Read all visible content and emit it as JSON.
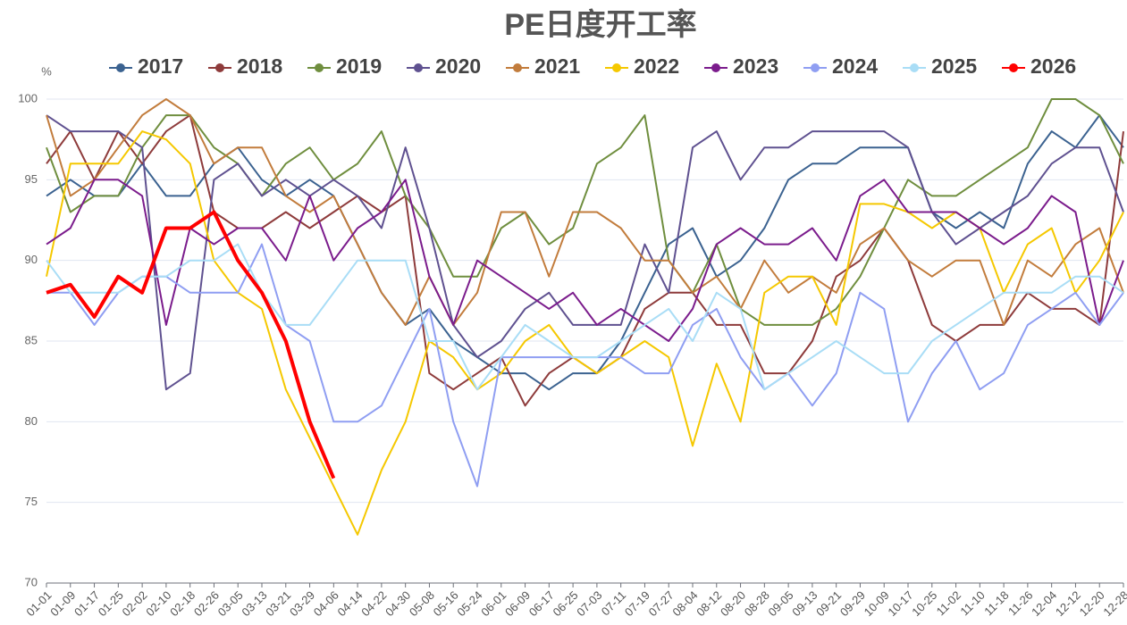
{
  "chart_data": {
    "type": "line",
    "title": "PE日度开工率",
    "y_label": "%",
    "categories": [
      "01-01",
      "01-09",
      "01-17",
      "01-25",
      "02-02",
      "02-10",
      "02-18",
      "02-26",
      "03-05",
      "03-13",
      "03-21",
      "03-29",
      "04-06",
      "04-14",
      "04-22",
      "04-30",
      "05-08",
      "05-16",
      "05-24",
      "06-01",
      "06-09",
      "06-17",
      "06-25",
      "07-03",
      "07-11",
      "07-19",
      "07-27",
      "08-04",
      "08-12",
      "08-20",
      "08-28",
      "09-05",
      "09-13",
      "09-21",
      "09-29",
      "10-09",
      "10-17",
      "10-25",
      "11-02",
      "11-10",
      "11-18",
      "11-26",
      "12-04",
      "12-12",
      "12-20",
      "12-28"
    ],
    "ylim": [
      70,
      100
    ],
    "yticks": [
      70,
      75,
      80,
      85,
      90,
      95,
      100
    ],
    "grid": true,
    "series": [
      {
        "name": "2017",
        "color": "#3b6290",
        "values": [
          94,
          95,
          94,
          94,
          96,
          94,
          94,
          96,
          97,
          95,
          94,
          95,
          94,
          91,
          88,
          86,
          87,
          85,
          84,
          83,
          83,
          82,
          83,
          83,
          85,
          88,
          91,
          92,
          89,
          90,
          92,
          95,
          96,
          96,
          97,
          97,
          97,
          93,
          92,
          93,
          92,
          96,
          98,
          97,
          99,
          97
        ]
      },
      {
        "name": "2018",
        "color": "#8e3b3b",
        "values": [
          96,
          98,
          95,
          98,
          96,
          98,
          99,
          93,
          92,
          92,
          93,
          92,
          93,
          94,
          93,
          94,
          83,
          82,
          83,
          84,
          81,
          83,
          84,
          83,
          84,
          87,
          88,
          88,
          86,
          86,
          83,
          83,
          85,
          89,
          90,
          92,
          90,
          86,
          85,
          86,
          86,
          88,
          87,
          87,
          86,
          98
        ]
      },
      {
        "name": "2019",
        "color": "#6f8e3e",
        "values": [
          97,
          93,
          94,
          94,
          97,
          99,
          99,
          97,
          96,
          94,
          96,
          97,
          95,
          96,
          98,
          94,
          92,
          89,
          89,
          92,
          93,
          91,
          92,
          96,
          97,
          99,
          90,
          88,
          91,
          87,
          86,
          86,
          86,
          87,
          89,
          92,
          95,
          94,
          94,
          95,
          96,
          97,
          100,
          100,
          99,
          96
        ]
      },
      {
        "name": "2020",
        "color": "#5f5190",
        "values": [
          99,
          98,
          98,
          98,
          97,
          82,
          83,
          95,
          96,
          94,
          95,
          94,
          95,
          94,
          92,
          97,
          92,
          86,
          84,
          85,
          87,
          88,
          86,
          86,
          86,
          91,
          88,
          97,
          98,
          95,
          97,
          97,
          98,
          98,
          98,
          98,
          97,
          93,
          91,
          92,
          93,
          94,
          96,
          97,
          97,
          93
        ]
      },
      {
        "name": "2021",
        "color": "#c27c3c",
        "values": [
          99,
          94,
          95,
          97,
          99,
          100,
          99,
          96,
          97,
          97,
          94,
          93,
          94,
          91,
          88,
          86,
          89,
          86,
          88,
          93,
          93,
          89,
          93,
          93,
          92,
          90,
          90,
          88,
          89,
          87,
          90,
          88,
          89,
          88,
          91,
          92,
          90,
          89,
          90,
          90,
          86,
          90,
          89,
          91,
          92,
          88
        ]
      },
      {
        "name": "2022",
        "color": "#f5c800",
        "values": [
          89,
          96,
          96,
          96,
          98,
          97.5,
          96,
          90,
          88,
          87,
          82,
          79,
          76,
          73,
          77,
          80,
          85,
          84,
          82,
          83,
          85,
          86,
          84,
          83,
          84,
          85,
          84,
          78.5,
          83.6,
          80,
          88,
          89,
          89,
          86,
          93.5,
          93.5,
          93,
          92,
          93,
          92,
          88,
          91,
          92,
          88,
          90,
          93
        ]
      },
      {
        "name": "2023",
        "color": "#7b1c8c",
        "values": [
          91,
          92,
          95,
          95,
          94,
          86,
          92,
          91,
          92,
          92,
          90,
          94,
          90,
          92,
          93,
          95,
          89,
          86,
          90,
          89,
          88,
          87,
          88,
          86,
          87,
          86,
          85,
          87,
          91,
          92,
          91,
          91,
          92,
          90,
          94,
          95,
          93,
          93,
          93,
          92,
          91,
          92,
          94,
          93,
          86,
          90
        ]
      },
      {
        "name": "2024",
        "color": "#8f9ef2",
        "values": [
          88,
          88,
          86,
          88,
          89,
          89,
          88,
          88,
          88,
          91,
          86,
          85,
          80,
          80,
          81,
          84,
          87,
          80,
          76,
          84,
          84,
          84,
          84,
          84,
          84,
          83,
          83,
          86,
          87,
          84,
          82,
          83,
          81,
          83,
          88,
          87,
          80,
          83,
          85,
          82,
          83,
          86,
          87,
          88,
          86,
          88
        ]
      },
      {
        "name": "2025",
        "color": "#a9ddf6",
        "values": [
          90,
          88,
          88,
          88,
          89,
          89,
          90,
          90,
          91,
          88,
          86,
          86,
          88,
          90,
          90,
          90,
          85,
          85,
          82,
          84,
          86,
          85,
          84,
          84,
          85,
          86,
          87,
          85,
          88,
          87,
          82,
          83,
          84,
          85,
          84,
          83,
          83,
          85,
          86,
          87,
          88,
          88,
          88,
          89,
          89,
          88
        ]
      },
      {
        "name": "2026",
        "color": "#ff0000",
        "values": [
          88,
          88.5,
          86.5,
          89,
          88,
          92,
          92,
          93,
          90,
          88,
          85,
          80,
          76.5,
          null,
          null,
          null,
          null,
          null,
          null,
          null,
          null,
          null,
          null,
          null,
          null,
          null,
          null,
          null,
          null,
          null,
          null,
          null,
          null,
          null,
          null,
          null,
          null,
          null,
          null,
          null,
          null,
          null,
          null,
          null,
          null,
          null
        ]
      }
    ]
  }
}
